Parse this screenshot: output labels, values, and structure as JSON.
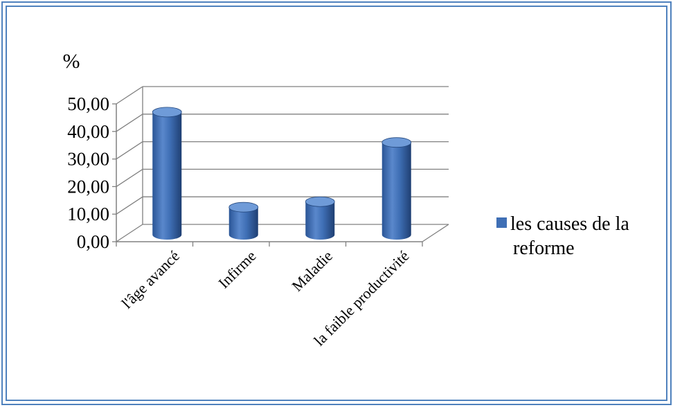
{
  "chart_data": {
    "type": "bar",
    "style": "3d-cylinder",
    "ylabel": "%",
    "ylim": [
      0,
      50
    ],
    "yticks": [
      "0,00",
      "10,00",
      "20,00",
      "30,00",
      "40,00",
      "50,00"
    ],
    "categories": [
      "l'âge avancé",
      "Infirme",
      "Maladie",
      "la faible productivité"
    ],
    "series": [
      {
        "name": "les causes de la reforme",
        "values": [
          44.5,
          10,
          12,
          33.5
        ]
      }
    ],
    "legend": {
      "placement": "right",
      "label_lines": [
        "les causes de la",
        "reforme"
      ]
    },
    "grid": true,
    "colors": {
      "bar": "#3f6fb5",
      "bar_dark": "#24487e",
      "bar_light": "#6f9bd8",
      "grid": "#808080",
      "border": "#4f81bd"
    }
  }
}
